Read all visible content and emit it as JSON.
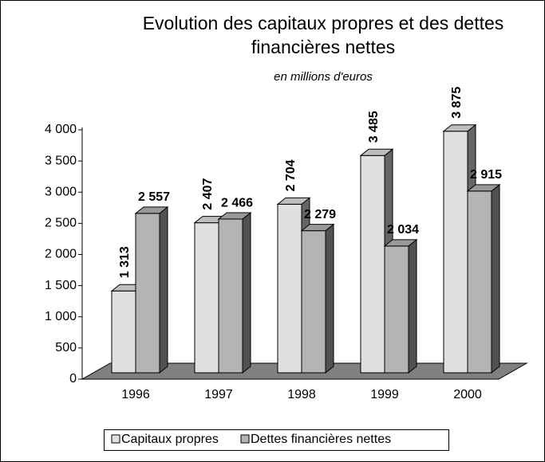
{
  "chart_data": {
    "type": "bar3d",
    "title": "Evolution des capitaux propres et des dettes financières nettes",
    "subtitle": "en millions d'euros",
    "categories": [
      "1996",
      "1997",
      "1998",
      "1999",
      "2000"
    ],
    "series": [
      {
        "name": "Capitaux propres",
        "color": "#e0e0e0",
        "values": [
          1313,
          2407,
          2704,
          3485,
          3875
        ],
        "value_labels": [
          "1 313",
          "2 407",
          "2 704",
          "3 485",
          "3 875"
        ]
      },
      {
        "name": "Dettes financières nettes",
        "color": "#b4b4b4",
        "values": [
          2557,
          2466,
          2279,
          2034,
          2915
        ],
        "value_labels": [
          "2 557",
          "2 466",
          "2 279",
          "2 034",
          "2 915"
        ]
      }
    ],
    "ylim": [
      0,
      4000
    ],
    "yticks": [
      0,
      500,
      {
        "value": 1000,
        "label": "1 000"
      },
      {
        "value": 1500,
        "label": "1 500"
      },
      {
        "value": 2000,
        "label": "2 000"
      },
      {
        "value": 2500,
        "label": "2 500"
      },
      {
        "value": 3000,
        "label": "3 000"
      },
      {
        "value": 3500,
        "label": "3 500"
      },
      {
        "value": 4000,
        "label": "4 000"
      }
    ],
    "legend": "bottom"
  }
}
